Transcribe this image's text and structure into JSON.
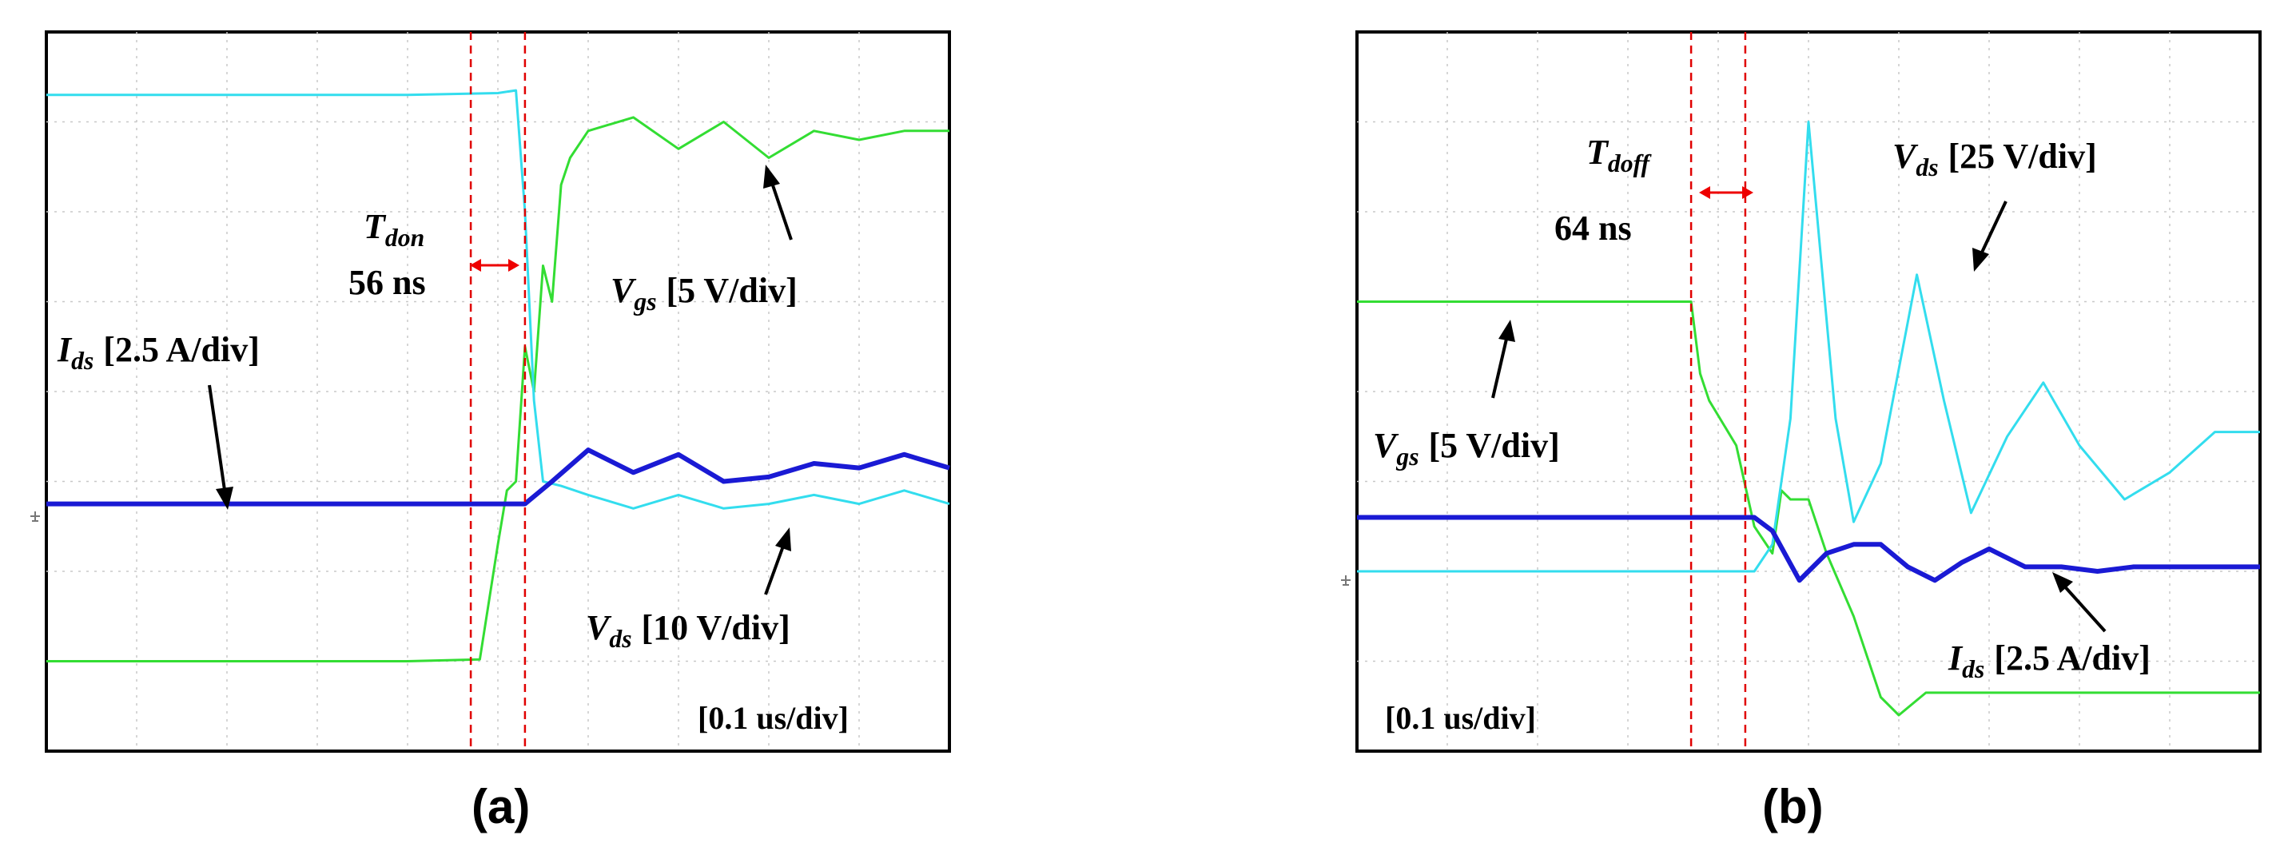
{
  "panels": [
    {
      "id": "a",
      "caption": "(a)",
      "timebase": "[0.1 us/div]",
      "delay_symbol": "T",
      "delay_subscript": "don",
      "delay_value": "56 ns",
      "labels": [
        {
          "symbol": "I",
          "sub": "ds",
          "scale": "[2.5 A/div]"
        },
        {
          "symbol": "V",
          "sub": "gs",
          "scale": "[5 V/div]"
        },
        {
          "symbol": "V",
          "sub": "ds",
          "scale": "[10 V/div]"
        }
      ]
    },
    {
      "id": "b",
      "caption": "(b)",
      "timebase": "[0.1 us/div]",
      "delay_symbol": "T",
      "delay_subscript": "doff",
      "delay_value": "64 ns",
      "labels": [
        {
          "symbol": "V",
          "sub": "ds",
          "scale": "[25 V/div]"
        },
        {
          "symbol": "V",
          "sub": "gs",
          "scale": "[5 V/div]"
        },
        {
          "symbol": "I",
          "sub": "ds",
          "scale": "[2.5 A/div]"
        }
      ]
    }
  ],
  "chart_data": [
    {
      "type": "line",
      "x_unit": "us",
      "xlim": [
        0,
        1.0
      ],
      "ylim": [
        0,
        8
      ],
      "grid": true,
      "series": [
        {
          "name": "Vgs",
          "color": "#33dd33",
          "x": [
            0,
            0.2,
            0.4,
            0.48,
            0.5,
            0.51,
            0.52,
            0.53,
            0.54,
            0.55,
            0.56,
            0.57,
            0.58,
            0.6,
            0.65,
            0.7,
            0.75,
            0.8,
            0.85,
            0.9,
            0.95,
            1.0
          ],
          "y": [
            1.0,
            1.0,
            1.0,
            1.02,
            2.3,
            2.9,
            3.0,
            4.5,
            4.0,
            5.4,
            5.0,
            6.3,
            6.6,
            6.9,
            7.05,
            6.7,
            7.0,
            6.6,
            6.9,
            6.8,
            6.9,
            6.9
          ]
        },
        {
          "name": "Vds",
          "color": "#33ddee",
          "x": [
            0,
            0.2,
            0.4,
            0.5,
            0.52,
            0.53,
            0.54,
            0.55,
            0.57,
            0.6,
            0.65,
            0.7,
            0.75,
            0.8,
            0.85,
            0.9,
            0.95,
            1.0
          ],
          "y": [
            7.3,
            7.3,
            7.3,
            7.32,
            7.35,
            6.0,
            3.9,
            3.0,
            2.95,
            2.85,
            2.7,
            2.85,
            2.7,
            2.75,
            2.85,
            2.75,
            2.9,
            2.75
          ]
        },
        {
          "name": "Ids",
          "color": "#1a1ad4",
          "x": [
            0,
            0.2,
            0.4,
            0.53,
            0.56,
            0.6,
            0.65,
            0.7,
            0.75,
            0.8,
            0.85,
            0.9,
            0.95,
            1.0
          ],
          "y": [
            2.75,
            2.75,
            2.75,
            2.75,
            3.0,
            3.35,
            3.1,
            3.3,
            3.0,
            3.05,
            3.2,
            3.15,
            3.3,
            3.15
          ]
        }
      ],
      "markers": [
        0.47,
        0.53
      ]
    },
    {
      "type": "line",
      "x_unit": "us",
      "xlim": [
        0,
        1.0
      ],
      "ylim": [
        0,
        8
      ],
      "grid": true,
      "series": [
        {
          "name": "Vgs",
          "color": "#33dd33",
          "x": [
            0,
            0.2,
            0.37,
            0.38,
            0.39,
            0.42,
            0.44,
            0.46,
            0.47,
            0.48,
            0.5,
            0.51,
            0.52,
            0.55,
            0.58,
            0.6,
            0.63,
            0.7,
            0.8,
            0.9,
            1.0
          ],
          "y": [
            5.0,
            5.0,
            5.0,
            4.2,
            3.9,
            3.4,
            2.5,
            2.2,
            2.9,
            2.8,
            2.8,
            2.5,
            2.2,
            1.5,
            0.6,
            0.4,
            0.65,
            0.65,
            0.65,
            0.65,
            0.65
          ]
        },
        {
          "name": "Vds",
          "color": "#33ddee",
          "x": [
            0,
            0.2,
            0.44,
            0.46,
            0.48,
            0.5,
            0.53,
            0.55,
            0.58,
            0.62,
            0.65,
            0.68,
            0.72,
            0.76,
            0.8,
            0.85,
            0.9,
            0.95,
            1.0
          ],
          "y": [
            2.0,
            2.0,
            2.0,
            2.3,
            3.7,
            7.0,
            3.7,
            2.55,
            3.2,
            5.3,
            3.9,
            2.65,
            3.5,
            4.1,
            3.4,
            2.8,
            3.1,
            3.55,
            3.55
          ]
        },
        {
          "name": "Ids",
          "color": "#1a1ad4",
          "x": [
            0,
            0.2,
            0.44,
            0.46,
            0.49,
            0.52,
            0.55,
            0.58,
            0.61,
            0.64,
            0.67,
            0.7,
            0.74,
            0.78,
            0.82,
            0.86,
            0.9,
            0.95,
            1.0
          ],
          "y": [
            2.6,
            2.6,
            2.6,
            2.45,
            1.9,
            2.2,
            2.3,
            2.3,
            2.05,
            1.9,
            2.1,
            2.25,
            2.05,
            2.05,
            2.0,
            2.05,
            2.05,
            2.05,
            2.05
          ]
        }
      ],
      "markers": [
        0.37,
        0.43
      ]
    }
  ]
}
